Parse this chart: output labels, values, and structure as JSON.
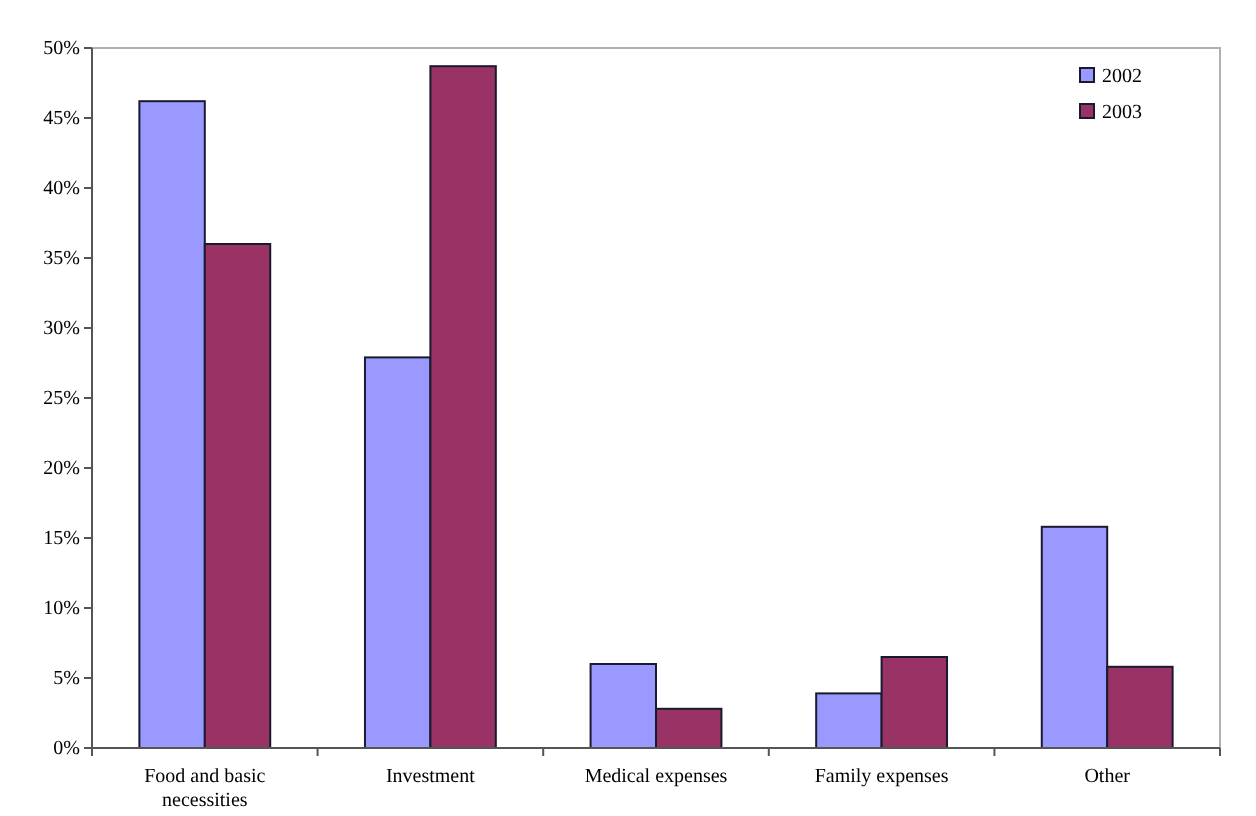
{
  "chart_data": {
    "type": "bar",
    "categories": [
      "Food and basic necessities",
      "Investment",
      "Medical expenses",
      "Family expenses",
      "Other"
    ],
    "series": [
      {
        "name": "2002",
        "color": "#9999ff",
        "values": [
          46.2,
          27.9,
          6.0,
          3.9,
          15.8
        ]
      },
      {
        "name": "2003",
        "color": "#993366",
        "values": [
          36.0,
          48.7,
          2.8,
          6.5,
          5.8
        ]
      }
    ],
    "ylim": [
      0,
      50
    ],
    "yticks": [
      {
        "value": 0,
        "label": "0%"
      },
      {
        "value": 5,
        "label": "5%"
      },
      {
        "value": 10,
        "label": "10%"
      },
      {
        "value": 15,
        "label": "15%"
      },
      {
        "value": 20,
        "label": "20%"
      },
      {
        "value": 25,
        "label": "25%"
      },
      {
        "value": 30,
        "label": "30%"
      },
      {
        "value": 35,
        "label": "35%"
      },
      {
        "value": 40,
        "label": "40%"
      },
      {
        "value": 45,
        "label": "45%"
      },
      {
        "value": 50,
        "label": "50%"
      }
    ],
    "grid": false,
    "legend": "top right"
  }
}
